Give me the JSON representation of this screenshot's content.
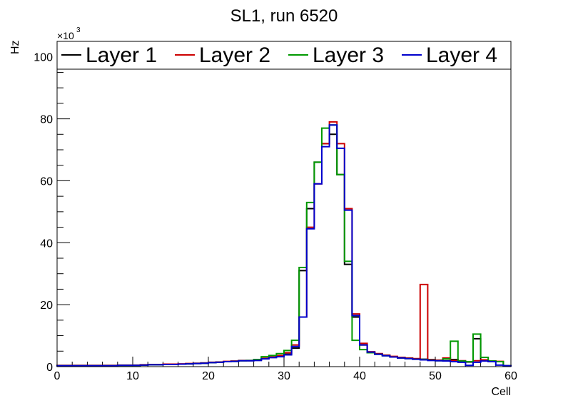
{
  "chart_data": {
    "type": "line",
    "title": "SL1, run 6520",
    "xlabel": "Cell",
    "ylabel": "Hz",
    "y_exponent_label": "×10",
    "y_exponent_power": "3",
    "xlim": [
      0,
      60
    ],
    "ylim": [
      0,
      105
    ],
    "x_ticks": [
      "0",
      "10",
      "20",
      "30",
      "40",
      "50",
      "60"
    ],
    "y_ticks": [
      "0",
      "20",
      "40",
      "60",
      "80",
      "100"
    ],
    "bin_edges": [
      0,
      1,
      2,
      3,
      4,
      5,
      6,
      7,
      8,
      9,
      10,
      11,
      12,
      13,
      14,
      15,
      16,
      17,
      18,
      19,
      20,
      21,
      22,
      23,
      24,
      25,
      26,
      27,
      28,
      29,
      30,
      31,
      32,
      33,
      34,
      35,
      36,
      37,
      38,
      39,
      40,
      41,
      42,
      43,
      44,
      45,
      46,
      47,
      48,
      49,
      50,
      51,
      52,
      53,
      54,
      55,
      56,
      57,
      58,
      59,
      60
    ],
    "legend_position": "top",
    "series": [
      {
        "name": "Layer 1",
        "color": "#000000",
        "values": [
          0.3,
          0.3,
          0.3,
          0.3,
          0.3,
          0.3,
          0.3,
          0.3,
          0.4,
          0.4,
          0.4,
          0.5,
          0.6,
          0.6,
          0.7,
          0.7,
          0.8,
          0.9,
          1.0,
          1.1,
          1.3,
          1.4,
          1.6,
          1.7,
          1.9,
          1.9,
          2.1,
          2.6,
          3.0,
          3.3,
          4.0,
          6.0,
          31.0,
          51.0,
          66.0,
          72.0,
          75.0,
          62.0,
          33.0,
          16.0,
          7.0,
          4.5,
          4.0,
          3.6,
          3.2,
          2.9,
          2.7,
          2.5,
          2.4,
          2.2,
          2.0,
          1.9,
          2.3,
          1.7,
          1.5,
          9.0,
          2.1,
          1.7,
          1.6,
          0.3
        ]
      },
      {
        "name": "Layer 2",
        "color": "#cc0000",
        "values": [
          0.4,
          0.4,
          0.4,
          0.4,
          0.4,
          0.4,
          0.4,
          0.4,
          0.5,
          0.5,
          0.5,
          0.6,
          0.7,
          0.7,
          0.8,
          0.8,
          0.9,
          1.0,
          1.1,
          1.2,
          1.4,
          1.5,
          1.7,
          1.8,
          2.0,
          2.0,
          2.2,
          2.7,
          3.1,
          3.6,
          4.5,
          7.0,
          16.0,
          45.0,
          59.0,
          72.0,
          79.0,
          72.0,
          51.0,
          17.0,
          7.5,
          4.8,
          4.2,
          3.7,
          3.3,
          3.0,
          2.8,
          2.6,
          26.5,
          2.3,
          2.1,
          2.8,
          2.0,
          1.9,
          1.6,
          1.9,
          2.2,
          1.8,
          1.7,
          0.3
        ]
      },
      {
        "name": "Layer 3",
        "color": "#009900",
        "values": [
          0.3,
          0.3,
          0.3,
          0.3,
          0.3,
          0.3,
          0.3,
          0.3,
          0.4,
          0.4,
          0.4,
          0.5,
          0.6,
          0.6,
          0.7,
          0.7,
          0.8,
          0.9,
          1.0,
          1.1,
          1.3,
          1.4,
          1.6,
          1.7,
          1.9,
          2.0,
          2.3,
          3.2,
          3.6,
          4.2,
          5.2,
          8.5,
          32.0,
          53.0,
          66.0,
          77.0,
          78.0,
          62.0,
          34.0,
          8.5,
          5.5,
          4.5,
          4.0,
          3.5,
          3.1,
          2.8,
          2.6,
          2.4,
          2.3,
          2.1,
          1.9,
          2.5,
          8.2,
          1.8,
          1.6,
          10.5,
          3.0,
          1.8,
          1.6,
          0.3
        ]
      },
      {
        "name": "Layer 4",
        "color": "#0000cc",
        "values": [
          0.3,
          0.3,
          0.3,
          0.3,
          0.3,
          0.3,
          0.3,
          0.3,
          0.4,
          0.4,
          0.4,
          0.5,
          0.6,
          0.6,
          0.7,
          0.7,
          0.8,
          0.9,
          1.0,
          1.1,
          1.3,
          1.4,
          1.6,
          1.7,
          1.9,
          1.9,
          2.0,
          2.5,
          2.9,
          3.2,
          3.8,
          6.5,
          16.0,
          44.5,
          59.0,
          71.0,
          78.0,
          70.5,
          50.5,
          16.5,
          7.0,
          4.7,
          4.0,
          3.5,
          3.1,
          2.8,
          2.6,
          2.4,
          2.2,
          2.0,
          1.9,
          1.8,
          1.6,
          1.4,
          0.4,
          1.4,
          1.8,
          1.6,
          0.5,
          0.3
        ]
      }
    ]
  }
}
